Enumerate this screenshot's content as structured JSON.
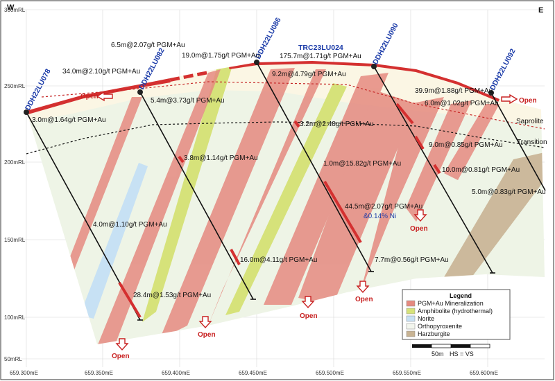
{
  "direction": {
    "west": "W",
    "east": "E"
  },
  "elevations": [
    "300mRL",
    "250mRL",
    "200mRL",
    "150mRL",
    "100mRL",
    "50mRL"
  ],
  "eastings": [
    "659.300mE",
    "659.350mE",
    "659.400mE",
    "659.450mE",
    "659.500mE",
    "659.550mE",
    "659.600mE"
  ],
  "drillholes": [
    "DDH22LU078",
    "DDH22LU082",
    "DDH22LU086",
    "TRC23LU024",
    "DDH22LU090",
    "DDH22LU092"
  ],
  "intercepts": [
    "6.5m@2.07g/t PGM+Au",
    "19.0m@1.75g/t PGM+Au",
    "34.0m@2.10g/t PGM+Au",
    "175.7m@1.71g/t PGM+Au",
    "9.2m@4.79g/t PGM+Au",
    "5.4m@3.73g/t PGM+Au",
    "3.0m@1.64g/t PGM+Au",
    "39.9m@1.88g/t PGM+Au",
    "6.0m@1.02g/t PGM+Au",
    "3.2m@2.48g/t PGM+Au",
    "9.0m@0.85g/t PGM+Au",
    "3.8m@1.14g/t PGM+Au",
    "1.0m@15.82g/t PGM+Au",
    "10.0m@0.81g/t PGM+Au",
    "5.0m@0.83g/t PGM+Au",
    "44.5m@2.07g/t PGM+Au",
    "4.0m@1.10g/t PGM+Au",
    "16.0m@4.11g/t PGM+Au",
    "7.7m@0.56g/t PGM+Au",
    "28.4m@1.53g/t PGM+Au"
  ],
  "nickel_note": "&0.14% Ni",
  "zones": {
    "saprolite": "Saprolite",
    "transition": "Transition"
  },
  "open_label": "Open",
  "legend": {
    "title": "Legend",
    "items": [
      {
        "label": "PGM+Au Mineralization",
        "color": "#e58a80"
      },
      {
        "label": "Amphibolite (hydrothermal)",
        "color": "#d6e27a"
      },
      {
        "label": "Norite",
        "color": "#c7e1f4"
      },
      {
        "label": "Orthopyroxenite",
        "color": "#f3f6ee"
      },
      {
        "label": "Harzburgite",
        "color": "#c8b393"
      }
    ]
  },
  "scale": {
    "label": "50m",
    "note": "HS = VS"
  }
}
